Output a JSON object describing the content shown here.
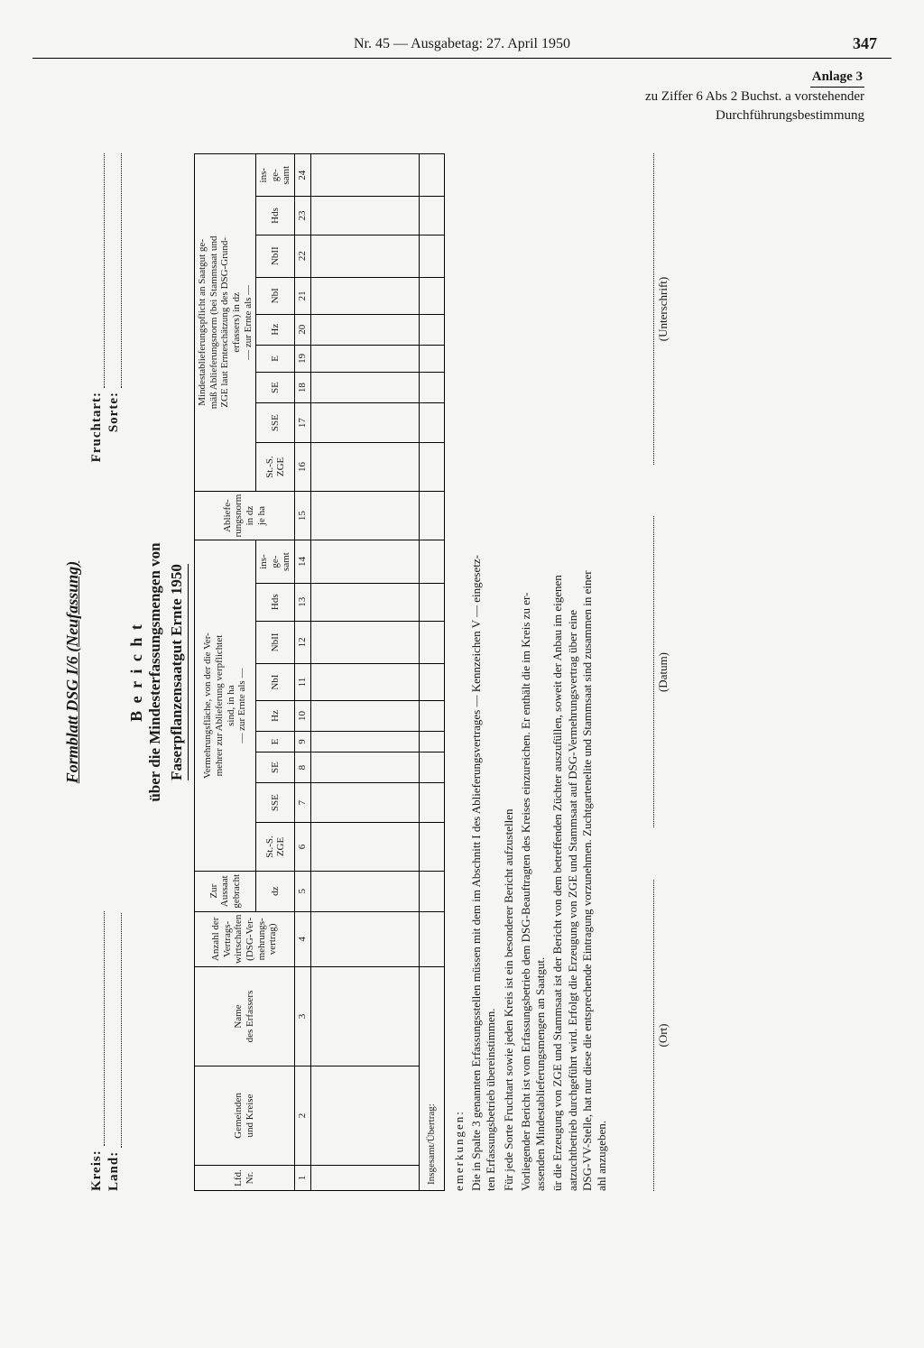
{
  "header": {
    "issue_line": "Nr. 45 — Ausgabetag: 27. April 1950",
    "page_number": "347"
  },
  "anlage": {
    "title": "Anlage 3",
    "subtitle_line1": "zu Ziffer 6 Abs 2 Buchst. a vorstehender",
    "subtitle_line2": "Durchführungsbestimmung"
  },
  "form": {
    "form_id": "Formblatt DSG I/6 (Neufassung)",
    "kreis_label": "Kreis:",
    "land_label": "Land:",
    "fruchtart_label": "Fruchtart:",
    "sorte_label": "Sorte:",
    "bericht": "B e r i c h t",
    "subtitle": "über die Mindesterfassungsmengen von",
    "subtitle2": "Faserpflanzensaatgut Ernte 1950",
    "columns": {
      "c1": "Lfd.\nNr.",
      "c2": "Gemeinden\nund Kreise",
      "c3": "Name\ndes Erfassers",
      "c4": "Anzahl der\nVertrags-\nwirtschaften\n(DSG-Ver-\nmehrungs-\nvertrag)",
      "c5_head": "Zur\nAussaat\ngebracht",
      "c5_unit": "dz",
      "grpA": "Vermehrungsfläche, von der die Ver-\nmehrer zur Ablieferung verpflichtet\nsind, in ha\n— zur Ernte als —",
      "c15": "Abliefe-\nrungsnorm\nin dz\nje ha",
      "grpB": "Mindestablieferungspflicht an Saatgut ge-\nmäß Ablieferungsnorm (bei Stammsaat und\nZGE laut Ernteschätzung des DSG-Grund-\nerfassers) in dz\n— zur Ernte als —",
      "sub": {
        "s6": "St.-S.\nZGE",
        "s7": "SSE",
        "s8": "SE",
        "s9": "E",
        "s10": "Hz",
        "s11": "NbI",
        "s12": "NbII",
        "s13": "Hds",
        "s14": "ins-\nge-\nsamt",
        "s16": "St.-S.\nZGE",
        "s17": "SSE",
        "s18": "SE",
        "s19": "E",
        "s20": "Hz",
        "s21": "NbI",
        "s22": "NbII",
        "s23": "Hds",
        "s24": "ins-\nge-\nsamt"
      },
      "nums": [
        "1",
        "2",
        "3",
        "4",
        "5",
        "6",
        "7",
        "8",
        "9",
        "10",
        "11",
        "12",
        "13",
        "14",
        "15",
        "16",
        "17",
        "18",
        "19",
        "20",
        "21",
        "22",
        "23",
        "24"
      ]
    },
    "total_row": "Insgesamt/Übertrag:"
  },
  "notes": {
    "heading": "emerkungen:",
    "p1": "Die in Spalte 3 genannten Erfassungsstellen müssen mit dem im Abschnitt I des Ablieferungsvertrages — Kennzeichen V — eingesetz-\nten Erfassungsbetrieb übereinstimmen.",
    "p2": "Für jede Sorte Fruchtart sowie jeden Kreis ist ein besonderer Bericht aufzustellen",
    "p3": "Vorliegender Bericht ist vom Erfassungsbetrieb dem DSG-Beauftragten des Kreises einzureichen. Er enthält die im Kreis zu er-\nassenden Mindestablieferungsmengen an Saatgut.",
    "p4": "ür die Erzeugung von ZGE und Stammsaat ist der Bericht von dem betreffenden Züchter auszufüllen, soweit der Anbau im eigenen\naatzuchtbetrieb durchgeführt wird. Erfolgt die Erzeugung von ZGE und Stammsaat auf DSG-Vermehrungsvertrag über eine\nDSG-VV-Stelle, hat nur diese die entsprechende Eintragung vorzunehmen. Zuchtgartenelite und Stammsaat sind zusammen in einer\nahl anzugeben."
  },
  "signatures": {
    "ort": "(Ort)",
    "datum": "(Datum)",
    "unterschrift": "(Unterschrift)"
  },
  "style": {
    "background": "#f5f5f3",
    "text_color": "#1a1a1a",
    "border_color": "#000000",
    "body_font": "Times New Roman",
    "header_fontsize_pt": 16,
    "page_number_fontsize_pt": 18,
    "table_fontsize_pt": 11,
    "notes_fontsize_pt": 13
  }
}
